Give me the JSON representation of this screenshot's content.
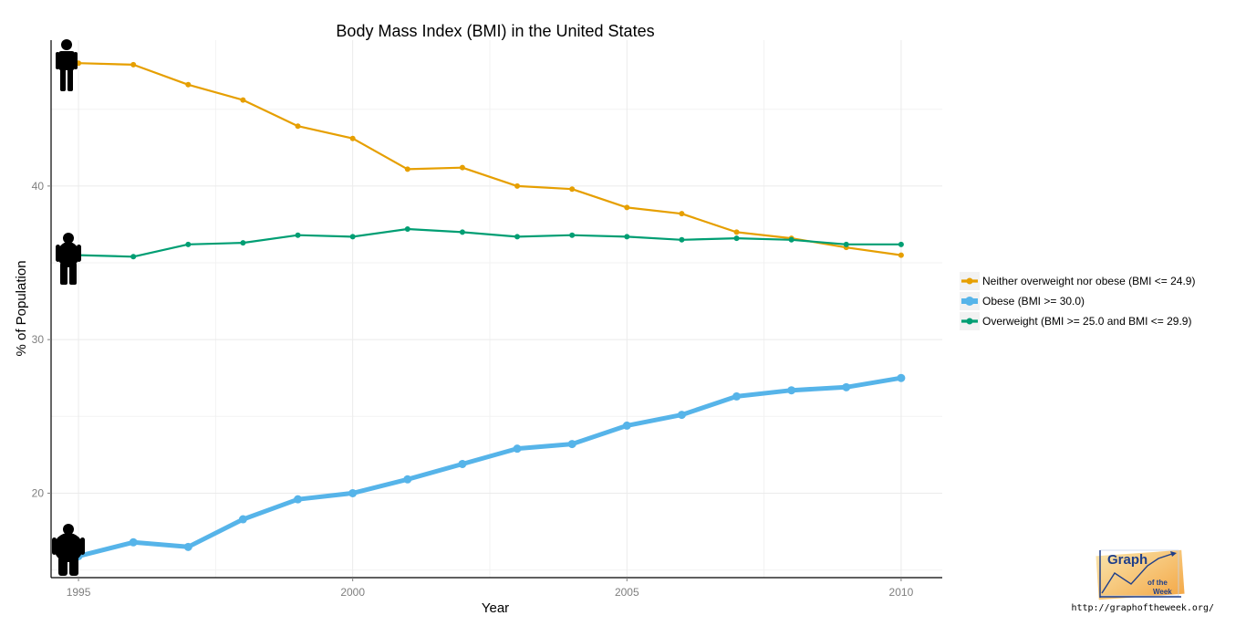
{
  "chart_data": {
    "type": "line",
    "title": "Body Mass Index (BMI) in the United States",
    "xlabel": "Year",
    "ylabel": "% of Population",
    "xlim": [
      1994.5,
      2010.75
    ],
    "ylim": [
      14.5,
      49.5
    ],
    "x_ticks": [
      1995,
      2000,
      2005,
      2010
    ],
    "y_ticks": [
      20,
      30,
      40
    ],
    "x_minor_ticks": [
      1997.5,
      2002.5,
      2007.5
    ],
    "y_minor_ticks": [
      15,
      25,
      35,
      45
    ],
    "grid": true,
    "legend_position": "right",
    "x": [
      1995,
      1996,
      1997,
      1998,
      1999,
      2000,
      2001,
      2002,
      2003,
      2004,
      2005,
      2006,
      2007,
      2008,
      2009,
      2010
    ],
    "series": [
      {
        "name": "Neither overweight nor obese (BMI <= 24.9)",
        "color": "#E69F00",
        "values": [
          48.0,
          47.9,
          46.6,
          45.6,
          43.9,
          43.1,
          41.1,
          41.2,
          40.0,
          39.8,
          38.6,
          38.2,
          37.0,
          36.6,
          36.0,
          35.5
        ]
      },
      {
        "name": "Obese (BMI >= 30.0)",
        "color": "#56B4E9",
        "values": [
          15.9,
          16.8,
          16.5,
          18.3,
          19.6,
          20.0,
          20.9,
          21.9,
          22.9,
          23.2,
          24.4,
          25.1,
          26.3,
          26.7,
          26.9,
          27.5
        ]
      },
      {
        "name": "Overweight (BMI >= 25.0 and BMI <= 29.9)",
        "color": "#009E73",
        "values": [
          35.5,
          35.4,
          36.2,
          36.3,
          36.8,
          36.7,
          37.2,
          37.0,
          36.7,
          36.8,
          36.7,
          36.5,
          36.6,
          36.5,
          36.2,
          36.2
        ]
      }
    ],
    "figure_icons": [
      {
        "series": "Neither overweight nor obese (BMI <= 24.9)",
        "icon": "slim-person-icon"
      },
      {
        "series": "Overweight (BMI >= 25.0 and BMI <= 29.9)",
        "icon": "overweight-person-icon"
      },
      {
        "series": "Obese (BMI >= 30.0)",
        "icon": "obese-person-icon"
      }
    ]
  },
  "watermark": {
    "logo_line1": "Graph",
    "logo_line2": "of the",
    "logo_line3": "Week",
    "url": "http://graphoftheweek.org/"
  }
}
